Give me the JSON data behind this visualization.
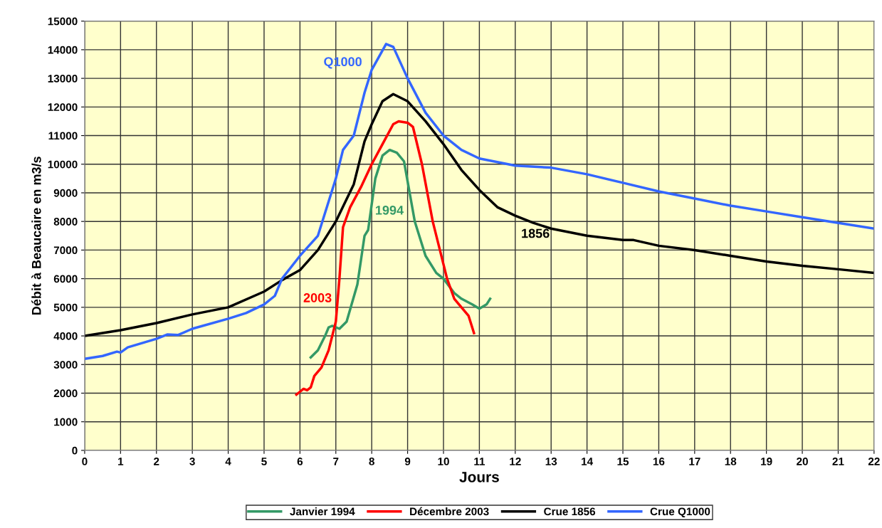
{
  "chart_data": {
    "type": "line",
    "xlabel": "Jours",
    "ylabel": "Débit à Beaucaire en m3/s",
    "xlim": [
      0,
      22
    ],
    "xticks": [
      0,
      1,
      2,
      3,
      4,
      5,
      6,
      7,
      8,
      9,
      10,
      11,
      12,
      13,
      14,
      15,
      16,
      17,
      18,
      19,
      20,
      21,
      22
    ],
    "ylim": [
      0,
      15000
    ],
    "yticks": [
      0,
      1000,
      2000,
      3000,
      4000,
      5000,
      6000,
      7000,
      8000,
      9000,
      10000,
      11000,
      12000,
      13000,
      14000,
      15000
    ],
    "grid": true,
    "legend": "bottom",
    "marker": "none",
    "line_style": "solid",
    "series": [
      {
        "name": "Janvier 1994",
        "color": "#339966",
        "x": [
          6.3,
          6.5,
          6.7,
          6.8,
          6.9,
          7.1,
          7.3,
          7.6,
          7.8,
          7.9,
          8.1,
          8.3,
          8.5,
          8.7,
          8.9,
          9.2,
          9.5,
          9.8,
          10,
          10.3,
          10.5,
          10.8,
          11,
          11.2,
          11.3
        ],
        "values": [
          3250,
          3500,
          4000,
          4300,
          4350,
          4250,
          4500,
          5800,
          7500,
          7700,
          9500,
          10300,
          10500,
          10400,
          10100,
          8000,
          6800,
          6200,
          6000,
          5500,
          5300,
          5100,
          4950,
          5100,
          5300
        ]
      },
      {
        "name": "Décembre 2003",
        "color": "#ff0000",
        "x": [
          5.9,
          6,
          6.1,
          6.2,
          6.3,
          6.4,
          6.6,
          6.8,
          7,
          7.1,
          7.2,
          7.4,
          7.7,
          8,
          8.3,
          8.6,
          8.75,
          9,
          9.15,
          9.4,
          9.7,
          9.9,
          10.1,
          10.3,
          10.5,
          10.7,
          10.85
        ],
        "values": [
          1950,
          2050,
          2150,
          2100,
          2200,
          2600,
          2900,
          3500,
          4500,
          6000,
          7800,
          8500,
          9200,
          10000,
          10700,
          11400,
          11500,
          11450,
          11300,
          10000,
          8000,
          7000,
          6000,
          5300,
          5000,
          4700,
          4100
        ]
      },
      {
        "name": "Crue 1856",
        "color": "#000000",
        "x": [
          0,
          0.5,
          1,
          2,
          3,
          4,
          5,
          5.5,
          6,
          6.5,
          7,
          7.5,
          7.8,
          8,
          8.3,
          8.6,
          9,
          9.5,
          10,
          10.5,
          11,
          11.5,
          12,
          12.5,
          13,
          14,
          15,
          15.3,
          16,
          17,
          18,
          19,
          20,
          21,
          22
        ],
        "values": [
          4000,
          4100,
          4200,
          4450,
          4750,
          5000,
          5550,
          5950,
          6300,
          7000,
          8000,
          9300,
          10800,
          11400,
          12200,
          12450,
          12200,
          11500,
          10700,
          9800,
          9100,
          8500,
          8200,
          7950,
          7750,
          7500,
          7350,
          7350,
          7150,
          7000,
          6800,
          6600,
          6450,
          6330,
          6200
        ]
      },
      {
        "name": "Crue Q1000",
        "color": "#3366ff",
        "x": [
          0,
          0.5,
          0.9,
          1,
          1.2,
          2,
          2.3,
          2.6,
          3,
          4,
          4.5,
          5,
          5.3,
          5.5,
          6,
          6.5,
          7,
          7.2,
          7.5,
          7.8,
          8,
          8.4,
          8.6,
          9,
          9.5,
          10,
          10.5,
          11,
          12,
          13,
          14,
          15,
          16,
          17,
          18,
          19,
          20,
          21,
          22
        ],
        "values": [
          3200,
          3300,
          3450,
          3420,
          3600,
          3900,
          4050,
          4030,
          4250,
          4600,
          4800,
          5100,
          5400,
          6000,
          6800,
          7500,
          9500,
          10500,
          11000,
          12500,
          13300,
          14200,
          14100,
          13000,
          11800,
          11000,
          10500,
          10200,
          9950,
          9880,
          9650,
          9350,
          9050,
          8800,
          8550,
          8350,
          8150,
          7950,
          7750
        ]
      }
    ],
    "annotations": [
      "1994",
      "2003",
      "1856",
      "Q1000"
    ]
  }
}
